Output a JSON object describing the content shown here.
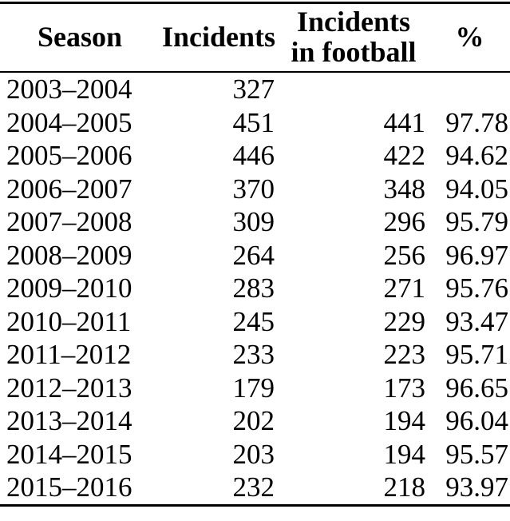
{
  "table": {
    "columns": [
      {
        "label": "Season"
      },
      {
        "label": "Incidents"
      },
      {
        "label": "Incidents\nin football"
      },
      {
        "label": "%"
      }
    ],
    "rows": [
      [
        "2003–2004",
        "327",
        "",
        ""
      ],
      [
        "2004–2005",
        "451",
        "441",
        "97.78"
      ],
      [
        "2005–2006",
        "446",
        "422",
        "94.62"
      ],
      [
        "2006–2007",
        "370",
        "348",
        "94.05"
      ],
      [
        "2007–2008",
        "309",
        "296",
        "95.79"
      ],
      [
        "2008–2009",
        "264",
        "256",
        "96.97"
      ],
      [
        "2009–2010",
        "283",
        "271",
        "95.76"
      ],
      [
        "2010–2011",
        "245",
        "229",
        "93.47"
      ],
      [
        "2011–2012",
        "233",
        "223",
        "95.71"
      ],
      [
        "2012–2013",
        "179",
        "173",
        "96.65"
      ],
      [
        "2013–2014",
        "202",
        "194",
        "96.04"
      ],
      [
        "2014–2015",
        "203",
        "194",
        "95.57"
      ],
      [
        "2015–2016",
        "232",
        "218",
        "93.97"
      ]
    ]
  },
  "colors": {
    "text": "#000000",
    "background": "#ffffff",
    "rule": "#000000"
  }
}
